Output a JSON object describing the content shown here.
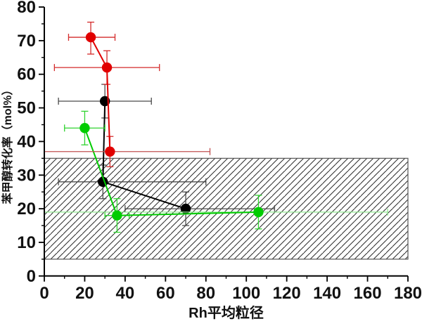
{
  "figure": {
    "background": "#ffffff",
    "axis_color": "#000000",
    "tick_label_color": "#111111"
  },
  "chart_data": {
    "type": "scatter",
    "title": "",
    "xlabel": "Rh平均粒径",
    "ylabel": "苯甲醇转化率（mol%）",
    "xlim": [
      0,
      180
    ],
    "ylim": [
      0,
      80
    ],
    "grid": false,
    "legend": "none",
    "x_major_ticks": [
      0,
      20,
      40,
      60,
      80,
      100,
      120,
      140,
      160,
      180
    ],
    "x_minor_ticks": [
      10,
      30,
      50,
      70,
      90,
      110,
      130,
      150,
      170
    ],
    "y_major_ticks": [
      0,
      10,
      20,
      30,
      40,
      50,
      60,
      70,
      80
    ],
    "y_minor_ticks": [
      5,
      15,
      25,
      35,
      45,
      55,
      65,
      75
    ],
    "hatched_band": {
      "x_min": 0,
      "x_max": 180,
      "y_min": 5,
      "y_max": 35,
      "hatch_style": "diagonal-lines",
      "line_color": "#2a2a2a",
      "border_color": "#555555"
    },
    "series": [
      {
        "name": "black-series",
        "marker": "circle",
        "marker_color": "#000000",
        "line_color": "#000000",
        "error_color": "#4a4a4a",
        "points": [
          {
            "x": 30,
            "y": 52,
            "x_lo": 7,
            "x_hi": 53,
            "y_lo": 47,
            "y_hi": 57
          },
          {
            "x": 29,
            "y": 28,
            "x_lo": 7,
            "x_hi": 80,
            "y_lo": 23,
            "y_hi": 33
          },
          {
            "x": 70,
            "y": 20,
            "x_lo": 40,
            "x_hi": 114,
            "y_lo": 15,
            "y_hi": 25
          }
        ]
      },
      {
        "name": "green-series",
        "marker": "circle",
        "marker_color": "#00cc00",
        "line_color": "#00cc00",
        "error_color": "#2fd32f",
        "points": [
          {
            "x": 20,
            "y": 44,
            "x_lo": 10,
            "x_hi": 30,
            "y_lo": 39,
            "y_hi": 49
          },
          {
            "x": 36,
            "y": 18,
            "x_lo": 30,
            "x_hi": 42,
            "y_lo": 13,
            "y_hi": 23
          },
          {
            "x": 106,
            "y": 19,
            "x_lo": 0,
            "x_hi": 170,
            "y_lo": 14,
            "y_hi": 24,
            "x_err_color": "#90e890"
          }
        ]
      },
      {
        "name": "red-series",
        "marker": "circle",
        "marker_color": "#e10000",
        "line_color": "#e10000",
        "error_color": "#d42a2a",
        "points": [
          {
            "x": 23,
            "y": 71,
            "x_lo": 12,
            "x_hi": 35,
            "y_lo": 66,
            "y_hi": 75.5
          },
          {
            "x": 31,
            "y": 62,
            "x_lo": 5,
            "x_hi": 57,
            "y_lo": 57,
            "y_hi": 67
          },
          {
            "x": 32.5,
            "y": 37,
            "x_lo": 0,
            "x_hi": 82,
            "y_lo": 32.5,
            "y_hi": 41.5,
            "x_err_color": "#c05050"
          }
        ]
      }
    ]
  }
}
